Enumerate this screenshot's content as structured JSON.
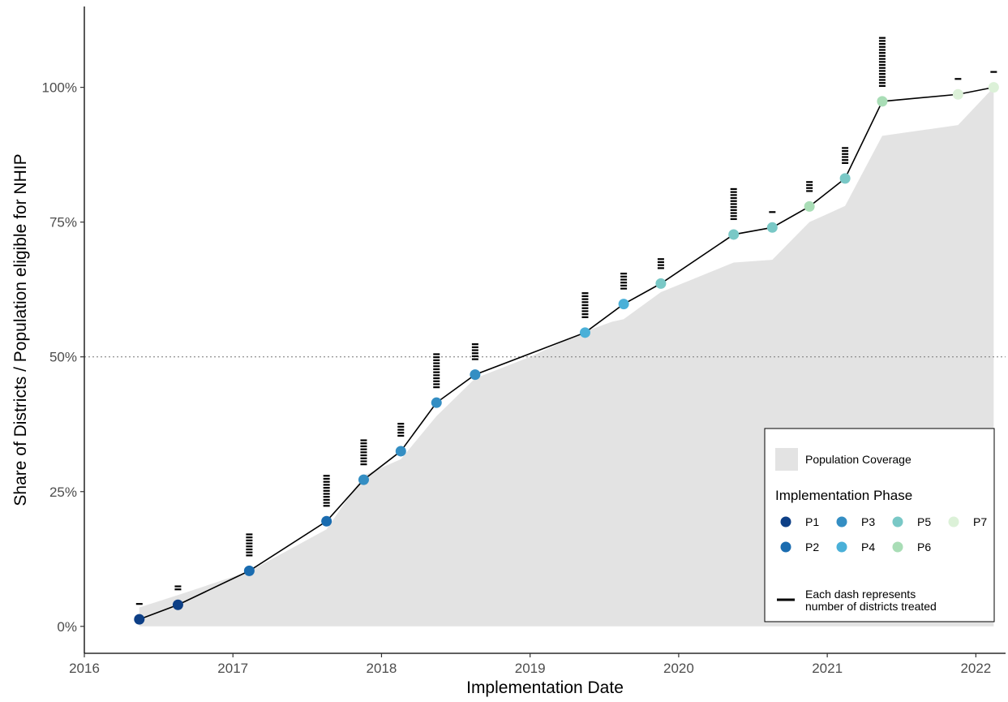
{
  "chart_data": {
    "type": "line",
    "xlabel": "Implementation Date",
    "ylabel": "Share of Districts / Population eligible for NHIP",
    "xlim": [
      2016.0,
      2022.2
    ],
    "ylim": [
      -0.05,
      1.15
    ],
    "x_ticks": [
      2016,
      2017,
      2018,
      2019,
      2020,
      2021,
      2022
    ],
    "x_tick_labels": [
      "2016",
      "2017",
      "2018",
      "2019",
      "2020",
      "2021",
      "2022"
    ],
    "y_ticks": [
      0,
      0.25,
      0.5,
      0.75,
      1.0
    ],
    "y_tick_labels": [
      "0%",
      "25%",
      "50%",
      "75%",
      "100%"
    ],
    "reference_line": {
      "y": 0.5,
      "style": "dotted"
    },
    "series": [
      {
        "kind": "line+points",
        "x": [
          2016.37,
          2016.63,
          2017.11,
          2017.63,
          2017.88,
          2018.13,
          2018.37,
          2018.63,
          2019.37,
          2019.63,
          2019.88,
          2020.37,
          2020.63,
          2020.88,
          2021.12,
          2021.37,
          2021.88,
          2022.12
        ],
        "y": [
          0.013,
          0.04,
          0.103,
          0.195,
          0.272,
          0.325,
          0.415,
          0.467,
          0.545,
          0.598,
          0.636,
          0.727,
          0.74,
          0.779,
          0.831,
          0.974,
          0.987,
          1.0
        ],
        "phase": [
          "P1",
          "P1",
          "P2",
          "P2",
          "P3",
          "P3",
          "P3",
          "P3",
          "P4",
          "P4",
          "P5",
          "P5",
          "P5",
          "P6",
          "P5",
          "P6",
          "P7",
          "P7"
        ],
        "districts_treated": [
          1,
          2,
          8,
          11,
          9,
          5,
          12,
          6,
          9,
          6,
          4,
          11,
          1,
          4,
          6,
          17,
          1,
          1
        ]
      },
      {
        "name": "Population Coverage",
        "kind": "area",
        "x": [
          2016.37,
          2016.63,
          2017.11,
          2017.63,
          2017.88,
          2018.13,
          2018.37,
          2018.63,
          2019.0,
          2019.37,
          2019.55,
          2019.63,
          2019.88,
          2020.37,
          2020.63,
          2020.88,
          2021.12,
          2021.37,
          2021.88,
          2022.12
        ],
        "y": [
          0.035,
          0.058,
          0.102,
          0.18,
          0.28,
          0.31,
          0.39,
          0.46,
          0.5,
          0.547,
          0.565,
          0.57,
          0.62,
          0.675,
          0.68,
          0.75,
          0.78,
          0.91,
          0.93,
          1.0
        ]
      }
    ],
    "phase_colors": {
      "P1": "#0d3f86",
      "P2": "#1a6cb0",
      "P3": "#348ec3",
      "P4": "#4ab0d8",
      "P5": "#79c8c6",
      "P6": "#a9ddb6",
      "P7": "#dcf1d8"
    },
    "colors": {
      "area": "#e3e3e3",
      "line": "#000000"
    },
    "legend": {
      "position": "bottom-right",
      "area_label": "Population Coverage",
      "phase_title": "Implementation Phase",
      "phases": [
        "P1",
        "P2",
        "P3",
        "P4",
        "P5",
        "P6",
        "P7"
      ],
      "dash_note_line1": "Each dash represents",
      "dash_note_line2": "number of districts treated"
    }
  }
}
